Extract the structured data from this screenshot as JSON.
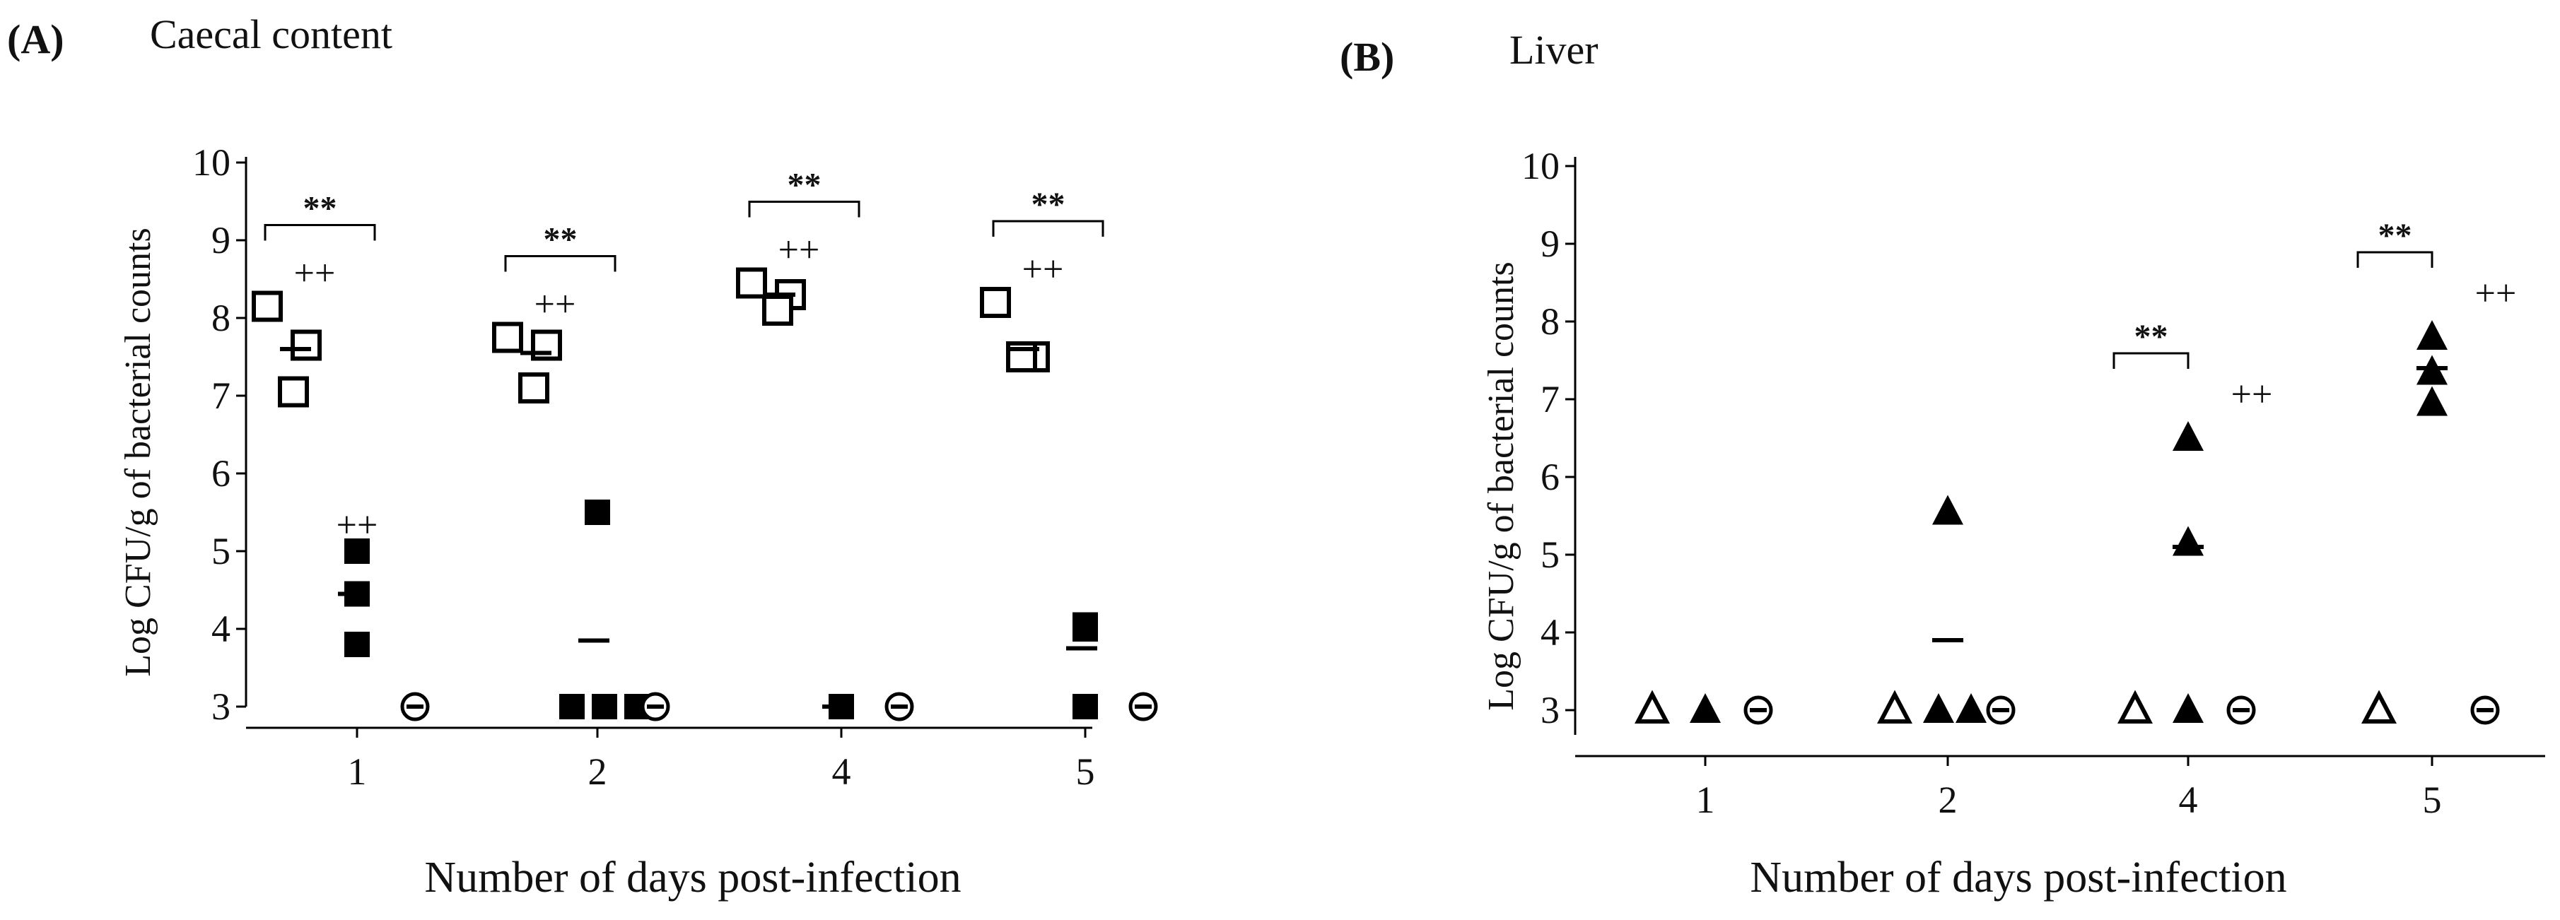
{
  "chart_data": [
    {
      "panel": "(A)",
      "title": "Caecal content",
      "type": "scatter",
      "xlabel": "Number of days post-infection",
      "ylabel": "Log CFU/g of bacterial counts",
      "ylim": [
        3,
        10
      ],
      "yticks": [
        "3",
        "4",
        "5",
        "6",
        "7",
        "8",
        "9",
        "10"
      ],
      "categories": [
        "1",
        "2",
        "4",
        "5"
      ],
      "groups": [
        {
          "category": "1",
          "series": [
            {
              "marker": "open-square",
              "points": [
                8.15,
                7.65,
                7.05
              ],
              "mean": 7.6
            },
            {
              "marker": "filled-square",
              "points": [
                5.0,
                4.45,
                3.8
              ],
              "mean": 4.45
            },
            {
              "marker": "open-circle",
              "points": [
                3.0
              ]
            }
          ],
          "sig": "**",
          "plus": [
            "++",
            "++"
          ]
        },
        {
          "category": "2",
          "series": [
            {
              "marker": "open-square",
              "points": [
                7.75,
                7.65,
                7.1
              ],
              "mean": 7.55
            },
            {
              "marker": "filled-square",
              "points": [
                5.5,
                3.0,
                3.0,
                3.0
              ],
              "mean": 3.85
            },
            {
              "marker": "open-circle",
              "points": [
                3.0
              ]
            }
          ],
          "sig": "**",
          "plus": [
            "++"
          ]
        },
        {
          "category": "4",
          "series": [
            {
              "marker": "open-square",
              "points": [
                8.45,
                8.3,
                8.1
              ],
              "mean": 8.3
            },
            {
              "marker": "filled-square",
              "points": [
                3.0
              ],
              "mean": 3.0
            },
            {
              "marker": "open-circle",
              "points": [
                3.0
              ]
            }
          ],
          "sig": "**",
          "plus": [
            "++"
          ]
        },
        {
          "category": "5",
          "series": [
            {
              "marker": "open-square",
              "points": [
                8.2,
                7.5,
                7.5
              ],
              "mean": 7.6
            },
            {
              "marker": "filled-square",
              "points": [
                4.05,
                4.0,
                3.0
              ],
              "mean": 3.75
            },
            {
              "marker": "open-circle",
              "points": [
                3.0
              ]
            }
          ],
          "sig": "**",
          "plus": [
            "++"
          ]
        }
      ]
    },
    {
      "panel": "(B)",
      "title": "Liver",
      "type": "scatter",
      "xlabel": "Number of days post-infection",
      "ylabel": "Log CFU/g of bacterial counts",
      "ylim": [
        3,
        10
      ],
      "yticks": [
        "3",
        "4",
        "5",
        "6",
        "7",
        "8",
        "9",
        "10"
      ],
      "categories": [
        "1",
        "2",
        "4",
        "5"
      ],
      "groups": [
        {
          "category": "1",
          "series": [
            {
              "marker": "open-triangle",
              "points": [
                3.0
              ]
            },
            {
              "marker": "filled-triangle",
              "points": [
                3.0
              ]
            },
            {
              "marker": "open-circle",
              "points": [
                3.0
              ]
            }
          ]
        },
        {
          "category": "2",
          "series": [
            {
              "marker": "open-triangle",
              "points": [
                3.0
              ]
            },
            {
              "marker": "filled-triangle",
              "points": [
                5.55,
                3.0,
                3.0
              ],
              "mean": 3.9
            },
            {
              "marker": "open-circle",
              "points": [
                3.0
              ]
            }
          ]
        },
        {
          "category": "4",
          "series": [
            {
              "marker": "open-triangle",
              "points": [
                3.0
              ]
            },
            {
              "marker": "filled-triangle",
              "points": [
                6.5,
                5.15,
                3.0
              ],
              "mean": 5.1
            },
            {
              "marker": "open-circle",
              "points": [
                3.0
              ]
            }
          ],
          "sig": "**",
          "plus": [
            "++"
          ]
        },
        {
          "category": "5",
          "series": [
            {
              "marker": "open-triangle",
              "points": [
                3.0
              ]
            },
            {
              "marker": "filled-triangle",
              "points": [
                7.8,
                7.35,
                6.95
              ],
              "mean": 7.4
            },
            {
              "marker": "open-circle",
              "points": [
                3.0
              ]
            }
          ],
          "sig": "**",
          "plus": [
            "++"
          ]
        }
      ]
    }
  ]
}
